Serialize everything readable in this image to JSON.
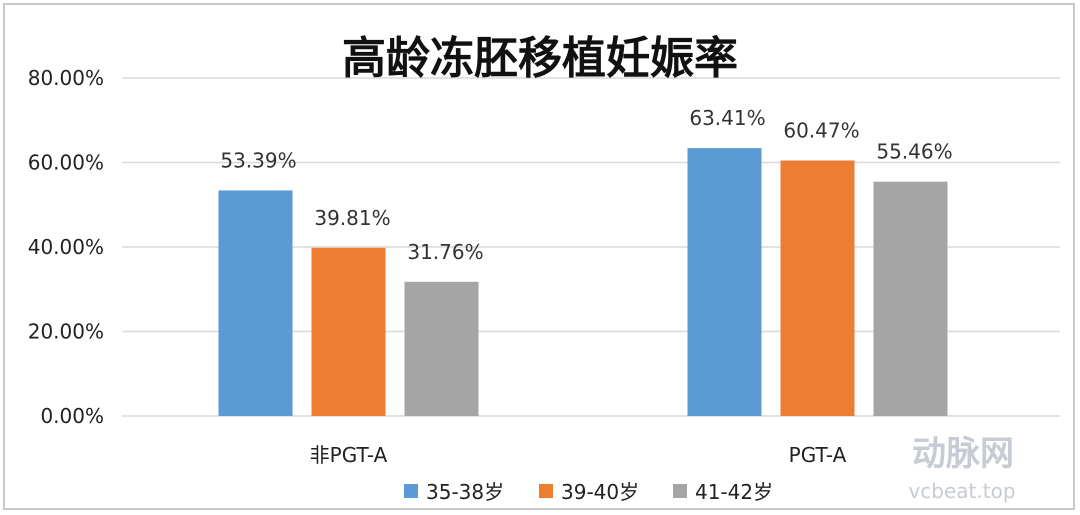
{
  "chart_data": {
    "type": "bar",
    "title": "高龄冻胚移植妊娠率",
    "categories": [
      "非PGT-A",
      "PGT-A"
    ],
    "series": [
      {
        "name": "35-38岁",
        "color": "#5b9bd5",
        "values": [
          53.39,
          63.41
        ],
        "labels": [
          "53.39%",
          "63.41%"
        ]
      },
      {
        "name": "39-40岁",
        "color": "#ed7d31",
        "values": [
          39.81,
          60.47
        ],
        "labels": [
          "39.81%",
          "60.47%"
        ]
      },
      {
        "name": "41-42岁",
        "color": "#a5a5a5",
        "values": [
          31.76,
          55.46
        ],
        "labels": [
          "31.76%",
          "55.46%"
        ]
      }
    ],
    "ylim": [
      0,
      80
    ],
    "yticks": [
      "0.00%",
      "20.00%",
      "40.00%",
      "60.00%",
      "80.00%"
    ],
    "grid": true,
    "legend": "bottom"
  },
  "watermark": {
    "cn": "动脉网",
    "en": "vcbeat.top"
  }
}
